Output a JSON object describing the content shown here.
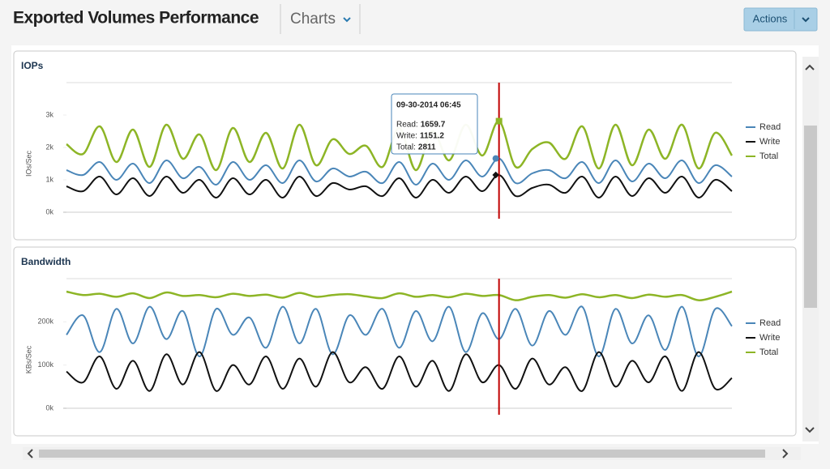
{
  "header": {
    "title": "Exported Volumes Performance",
    "view": "Charts",
    "actions": "Actions"
  },
  "chart_data": [
    {
      "type": "line",
      "title": "IOPs",
      "y_label": "IOs/Sec",
      "ylim": [
        0,
        4000
      ],
      "yticks": [
        {
          "value": 0,
          "label": "0k"
        },
        {
          "value": 1000,
          "label": "1k"
        },
        {
          "value": 2000,
          "label": "2k"
        },
        {
          "value": 3000,
          "label": "3k"
        }
      ],
      "grid": false,
      "legend": "right",
      "series": [
        {
          "name": "Read",
          "color": "#4a86b8",
          "values": [
            1300,
            1150,
            1550,
            1000,
            1500,
            900,
            1600,
            1050,
            1400,
            850,
            1550,
            1000,
            1450,
            900,
            1600,
            950,
            1350,
            1100,
            1250,
            900,
            1550,
            850,
            1500,
            1000,
            1600,
            1100,
            1659.7,
            900,
            1200,
            1300,
            1050,
            1550,
            900,
            1600,
            950,
            1500,
            1050,
            1600,
            900,
            1450,
            1100
          ]
        },
        {
          "name": "Write",
          "color": "#111111",
          "values": [
            800,
            650,
            1100,
            550,
            1050,
            500,
            1100,
            600,
            1000,
            450,
            1050,
            550,
            1000,
            450,
            1100,
            500,
            900,
            700,
            800,
            500,
            1050,
            450,
            1000,
            600,
            1100,
            650,
            1151.2,
            500,
            750,
            850,
            600,
            1100,
            450,
            1100,
            500,
            1050,
            600,
            1100,
            450,
            1000,
            650
          ]
        },
        {
          "name": "Total",
          "color": "#8db526",
          "values": [
            2100,
            1800,
            2650,
            1550,
            2550,
            1400,
            2700,
            1650,
            2400,
            1300,
            2600,
            1550,
            2450,
            1350,
            2700,
            1450,
            2250,
            1800,
            2050,
            1400,
            2600,
            1300,
            2500,
            1600,
            2700,
            1750,
            2811,
            1400,
            1950,
            2150,
            1650,
            2650,
            1350,
            2700,
            1450,
            2550,
            1650,
            2700,
            1350,
            2450,
            1750
          ]
        }
      ],
      "tooltip": {
        "time": "09-30-2014 06:45",
        "items": [
          {
            "label": "Read:",
            "value": 1659.7
          },
          {
            "label": "Write:",
            "value": 1151.2
          },
          {
            "label": "Total:",
            "value": 2811
          }
        ]
      }
    },
    {
      "type": "line",
      "title": "Bandwidth",
      "y_label": "KBs/Sec",
      "ylim": [
        0,
        300000
      ],
      "yticks": [
        {
          "value": 0,
          "label": "0k"
        },
        {
          "value": 100000,
          "label": "100k"
        },
        {
          "value": 200000,
          "label": "200k"
        }
      ],
      "grid": false,
      "legend": "right",
      "series": [
        {
          "name": "Read",
          "color": "#4a86b8",
          "values": [
            170000,
            215000,
            130000,
            230000,
            150000,
            235000,
            160000,
            225000,
            120000,
            230000,
            170000,
            210000,
            140000,
            235000,
            150000,
            230000,
            125000,
            215000,
            170000,
            230000,
            140000,
            225000,
            155000,
            235000,
            130000,
            220000,
            160000,
            230000,
            145000,
            225000,
            170000,
            235000,
            120000,
            230000,
            150000,
            215000,
            135000,
            235000,
            120000,
            230000,
            190000
          ]
        },
        {
          "name": "Write",
          "color": "#111111",
          "values": [
            85000,
            60000,
            120000,
            45000,
            110000,
            40000,
            125000,
            55000,
            130000,
            40000,
            100000,
            55000,
            120000,
            45000,
            115000,
            50000,
            130000,
            60000,
            95000,
            45000,
            120000,
            50000,
            110000,
            40000,
            125000,
            60000,
            100000,
            45000,
            115000,
            55000,
            95000,
            40000,
            130000,
            50000,
            110000,
            60000,
            120000,
            40000,
            130000,
            45000,
            70000
          ]
        },
        {
          "name": "Total",
          "color": "#8db526",
          "values": [
            270000,
            262000,
            265000,
            258000,
            266000,
            255000,
            268000,
            260000,
            262000,
            257000,
            265000,
            260000,
            263000,
            256000,
            267000,
            258000,
            262000,
            264000,
            259000,
            255000,
            266000,
            258000,
            262000,
            257000,
            265000,
            260000,
            262000,
            250000,
            258000,
            262000,
            256000,
            264000,
            257000,
            262000,
            255000,
            263000,
            258000,
            262000,
            250000,
            258000,
            270000
          ]
        }
      ]
    }
  ]
}
